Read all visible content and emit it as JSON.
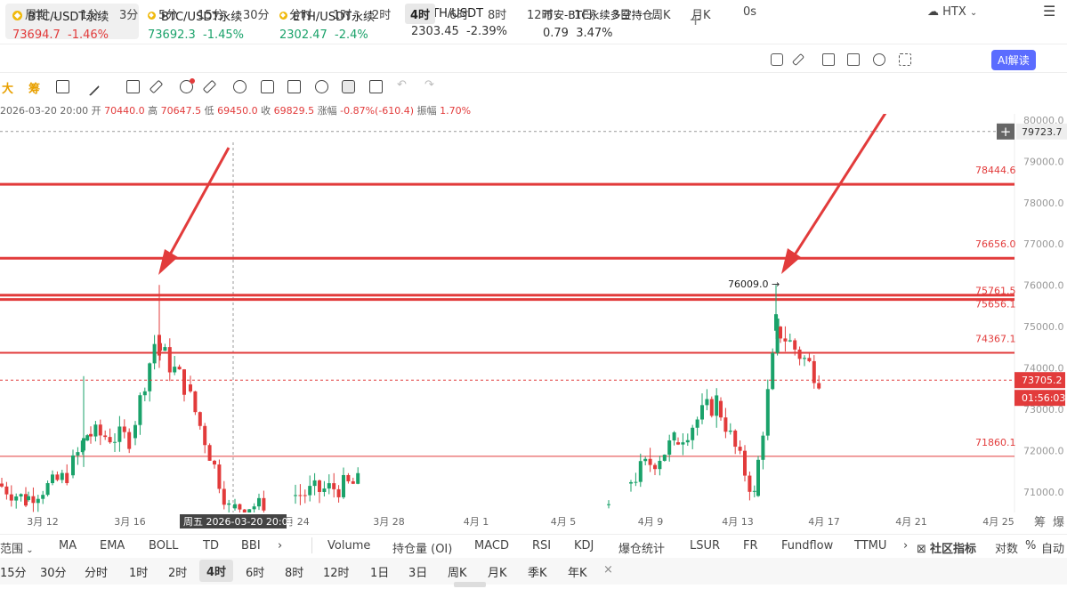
{
  "tabs": [
    {
      "name": "BTC/USDT永续",
      "price": "73694.7",
      "change": "-1.46%",
      "color": "red"
    },
    {
      "name": "BTC/USDT永续",
      "price": "73692.3",
      "change": "-1.45%",
      "color": "grn"
    },
    {
      "name": "ETH/USDT永续",
      "price": "2302.47",
      "change": "-2.4%",
      "color": "grn"
    },
    {
      "name": "ETH/USDT",
      "price": "2303.45",
      "change": "-2.39%",
      "color": "neutral"
    },
    {
      "name": "币安-BTC永续多空持仓...",
      "price": "0.79",
      "change": "3.47%",
      "color": "neutral"
    }
  ],
  "add_tab": "+",
  "periods": {
    "dropdown": "周期",
    "items": [
      "1分",
      "3分",
      "5分",
      "15分",
      "30分",
      "分时",
      "1时",
      "2时",
      "4时",
      "6时",
      "8时",
      "12时",
      "1日",
      "3日",
      "周K",
      "月K"
    ],
    "selected": "4时"
  },
  "countdown_toggle": "0s",
  "exchange": "HTX",
  "ai_button": "AI解读",
  "tools": {
    "big": "大",
    "chip": "筹"
  },
  "ohlc": {
    "date": "2026-03-20 20:00",
    "open_k": "开",
    "open": "70440.0",
    "high_k": "高",
    "high": "70647.5",
    "low_k": "低",
    "low": "69450.0",
    "close_k": "收",
    "close": "69829.5",
    "chg_k": "涨幅",
    "chg": "-0.87%(-610.4)",
    "amp_k": "振幅",
    "amp": "1.70%"
  },
  "chart_data": {
    "type": "candlestick",
    "symbol": "BTC/USDT永续",
    "interval": "4时",
    "ylim": [
      70500,
      80150
    ],
    "y_ticks": [
      "80000.0",
      "79000.0",
      "78000.0",
      "77000.0",
      "76000.0",
      "75000.0",
      "74000.0",
      "73000.0",
      "72000.0",
      "71000.0"
    ],
    "x_ticks": [
      "3月 12",
      "3月 16",
      "3月 24",
      "3月 28",
      "4月 1",
      "4月 5",
      "4月 9",
      "4月 13",
      "4月 17",
      "4月 21",
      "4月 25"
    ],
    "horizontal_lines": [
      {
        "value": 78444.6,
        "label": "78444.6",
        "width": "thick"
      },
      {
        "value": 76656.0,
        "label": "76656.0",
        "width": "thick"
      },
      {
        "value": 75761.5,
        "label": "75761.5",
        "width": "thick"
      },
      {
        "value": 75656.1,
        "label": "75656.1",
        "width": "thick"
      },
      {
        "value": 74367.1,
        "label": "74367.1",
        "width": "medium"
      },
      {
        "value": 71860.1,
        "label": "71860.1",
        "width": "thin"
      }
    ],
    "crosshair_price": "79723.7",
    "last_price": "73705.2",
    "countdown": "01:56:03",
    "high_annotation": "76009.0 →",
    "crosshair_time": "周五 2026-03-20 20:00",
    "up_color": "#1aa26a",
    "down_color": "#e23b3b",
    "level_color": "#e23b3b"
  },
  "right_axis_extras": [
    "筹",
    "爆"
  ],
  "indicators": {
    "dropdown": "范围",
    "main": [
      "MA",
      "EMA",
      "BOLL",
      "TD",
      "BBI"
    ],
    "more": "›",
    "sub": [
      "Volume",
      "持仓量 (OI)",
      "MACD",
      "RSI",
      "KDJ",
      "爆仓统计",
      "LSUR",
      "FR",
      "Fundflow",
      "TTMU"
    ],
    "community": "社区指标",
    "log": "对数",
    "pct": "%",
    "auto": "自动"
  },
  "bottom_periods": {
    "items": [
      "15分",
      "30分",
      "分时",
      "1时",
      "2时",
      "4时",
      "6时",
      "8时",
      "12时",
      "1日",
      "3日",
      "周K",
      "月K",
      "季K",
      "年K"
    ],
    "selected": "4时",
    "close": "×"
  }
}
